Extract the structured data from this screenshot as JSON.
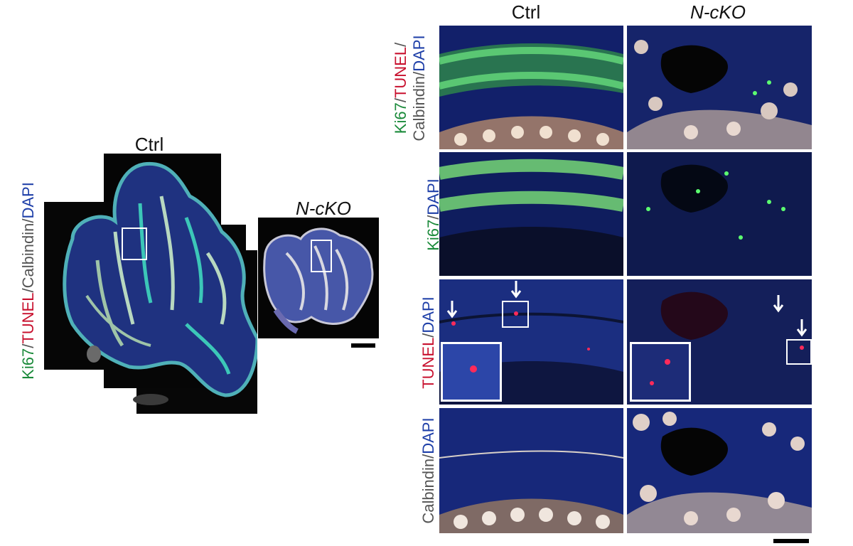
{
  "left": {
    "ctrl_title": "Ctrl",
    "ncko_title": "N-cKO",
    "stain_label": {
      "ki67": "Ki67",
      "sep1": "/",
      "tunel": "TUNEL",
      "sep2": "/",
      "calbindin": "Calbindin",
      "sep3": "/",
      "dapi": "DAPI"
    }
  },
  "right": {
    "ctrl_title": "Ctrl",
    "ncko_title": "N-cKO",
    "row_labels": {
      "row1": {
        "ki67": "Ki67",
        "sep1": "/",
        "tunel": "TUNEL",
        "sep2": "/",
        "calbindin": "Calbindin",
        "sep3": "/",
        "dapi": "DAPI"
      },
      "row2": {
        "ki67": "Ki67",
        "sep": "/",
        "dapi": "DAPI"
      },
      "row3": {
        "tunel": "TUNEL",
        "sep": "/",
        "dapi": "DAPI"
      },
      "row4": {
        "calbindin": "Calbindin",
        "sep": "/",
        "dapi": "DAPI"
      }
    }
  },
  "colors": {
    "ki67": "#1a8a3a",
    "tunel": "#c8102e",
    "calbindin": "#555555",
    "dapi": "#1e3fa8"
  }
}
